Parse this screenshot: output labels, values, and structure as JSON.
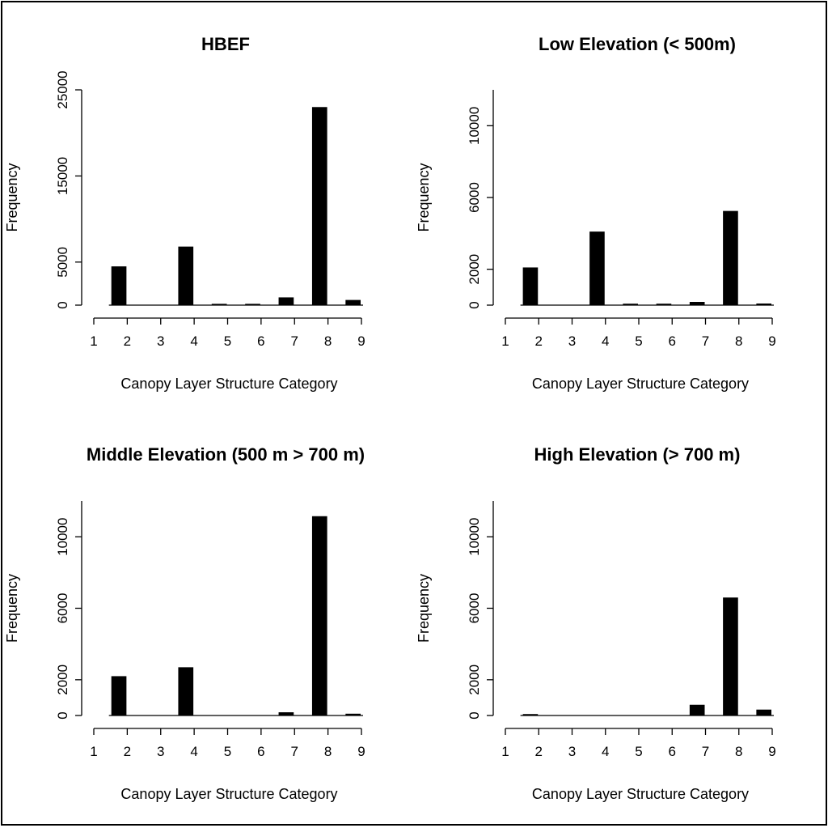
{
  "chart_data": [
    {
      "type": "bar",
      "title": "HBEF",
      "xlabel": "Canopy Layer Structure Category",
      "ylabel": "Frequency",
      "categories": [
        "2",
        "4",
        "5",
        "6",
        "7",
        "8",
        "9"
      ],
      "values": [
        4500,
        6800,
        150,
        150,
        900,
        23000,
        600
      ],
      "xticks": [
        "1",
        "2",
        "3",
        "4",
        "5",
        "6",
        "7",
        "8",
        "9"
      ],
      "yticks": [
        "0",
        "5000",
        "15000",
        "25000"
      ],
      "ylim": [
        0,
        25000
      ]
    },
    {
      "type": "bar",
      "title": "Low Elevation (< 500m)",
      "xlabel": "Canopy Layer Structure Category",
      "ylabel": "Frequency",
      "categories": [
        "2",
        "4",
        "5",
        "6",
        "7",
        "8",
        "9"
      ],
      "values": [
        2100,
        4100,
        80,
        80,
        180,
        5250,
        90
      ],
      "xticks": [
        "1",
        "2",
        "3",
        "4",
        "5",
        "6",
        "7",
        "8",
        "9"
      ],
      "yticks": [
        "0",
        "2000",
        "6000",
        "10000"
      ],
      "ylim": [
        0,
        12000
      ]
    },
    {
      "type": "bar",
      "title": "Middle Elevation (500 m > 700 m)",
      "xlabel": "Canopy Layer Structure Category",
      "ylabel": "Frequency",
      "categories": [
        "2",
        "4",
        "7",
        "8",
        "9"
      ],
      "values": [
        2200,
        2700,
        180,
        11150,
        100
      ],
      "xticks": [
        "1",
        "2",
        "3",
        "4",
        "5",
        "6",
        "7",
        "8",
        "9"
      ],
      "yticks": [
        "0",
        "2000",
        "6000",
        "10000"
      ],
      "ylim": [
        0,
        12000
      ]
    },
    {
      "type": "bar",
      "title": "High Elevation (> 700 m)",
      "xlabel": "Canopy Layer Structure Category",
      "ylabel": "Frequency",
      "categories": [
        "2",
        "7",
        "8",
        "9"
      ],
      "values": [
        80,
        600,
        6600,
        330
      ],
      "xticks": [
        "1",
        "2",
        "3",
        "4",
        "5",
        "6",
        "7",
        "8",
        "9"
      ],
      "yticks": [
        "0",
        "2000",
        "6000",
        "10000"
      ],
      "ylim": [
        0,
        12000
      ]
    }
  ]
}
